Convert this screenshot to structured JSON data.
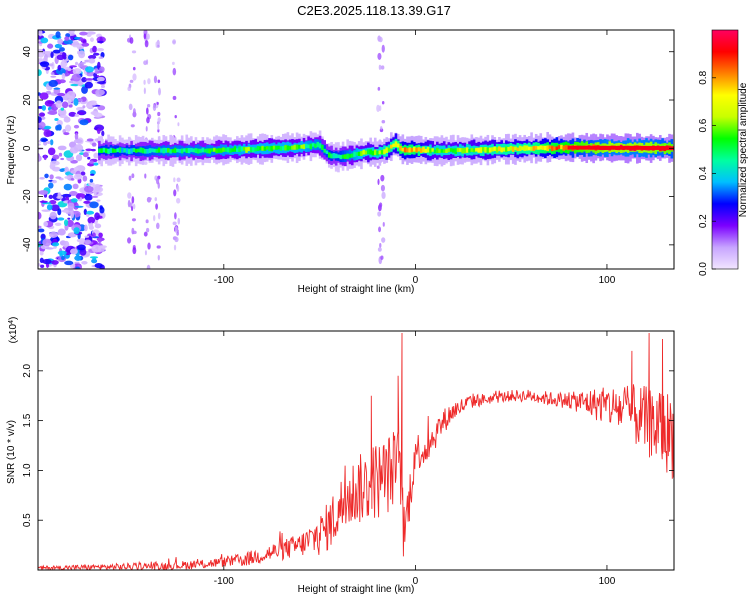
{
  "title": "C2E3.2025.118.13.39.G17",
  "chart_data": [
    {
      "type": "heatmap",
      "xlabel": "Height of straight line (km)",
      "ylabel": "Frequency (Hz)",
      "xlim": [
        -197,
        135
      ],
      "ylim": [
        -50,
        49
      ],
      "xticks": [
        -100,
        0,
        100
      ],
      "xtick_labels": [
        "-100",
        "0",
        "100"
      ],
      "yticks": [
        -40,
        -20,
        0,
        20,
        40
      ],
      "ytick_labels": [
        "-40",
        "-20",
        "0",
        "20",
        "40"
      ],
      "colorbar": {
        "label": "Normalized spectral amplitude",
        "range": [
          0,
          1
        ],
        "ticks": [
          0.0,
          0.2,
          0.4,
          0.6,
          0.8
        ],
        "tick_labels": [
          "0.0",
          "0.2",
          "0.4",
          "0.6",
          "0.8"
        ],
        "colors": [
          "#f2e6ff",
          "#c7a4ff",
          "#7b00ff",
          "#0000ff",
          "#00bfff",
          "#00ffa0",
          "#00ff00",
          "#c8ff00",
          "#ffff00",
          "#ff8000",
          "#ff0000",
          "#ff0060"
        ]
      },
      "ridge": {
        "x": [
          -165,
          -150,
          -130,
          -110,
          -90,
          -75,
          -60,
          -50,
          -45,
          -40,
          -35,
          -30,
          -25,
          -20,
          -15,
          -10,
          -8,
          -5,
          0,
          10,
          20,
          40,
          60,
          80,
          100,
          120,
          135
        ],
        "y": [
          -1,
          -1,
          -1,
          -1,
          -0.5,
          0,
          0.5,
          1.5,
          -3,
          -3.5,
          -3,
          -2.5,
          -1.5,
          -2,
          -1,
          2,
          0,
          -1,
          -0.5,
          -1,
          -1,
          -0.5,
          0,
          0.3,
          0.2,
          0.2,
          0
        ],
        "amplitude": [
          0.45,
          0.45,
          0.5,
          0.5,
          0.55,
          0.55,
          0.55,
          0.5,
          0.45,
          0.45,
          0.5,
          0.55,
          0.6,
          0.6,
          0.65,
          0.7,
          0.75,
          0.75,
          0.75,
          0.6,
          0.6,
          0.65,
          0.7,
          0.85,
          0.95,
          0.95,
          0.9
        ]
      },
      "noise_region": {
        "x": [
          -197,
          -163
        ],
        "y": [
          -50,
          49
        ]
      }
    },
    {
      "type": "line",
      "xlabel": "Height of straight line (km)",
      "ylabel": "SNR (10 * v/v)",
      "y_multiplier_label": "(x10",
      "y_multiplier_exp": "4",
      "xlim": [
        -197,
        135
      ],
      "ylim": [
        0,
        2.4
      ],
      "xticks": [
        -100,
        0,
        100
      ],
      "xtick_labels": [
        "-100",
        "0",
        "100"
      ],
      "yticks": [
        0.5,
        1.0,
        1.5,
        2.0
      ],
      "ytick_labels": [
        "0.5",
        "1.0",
        "1.5",
        "2.0"
      ],
      "line_color": "#ee2a2a",
      "envelope": {
        "x": [
          -197,
          -160,
          -130,
          -110,
          -90,
          -80,
          -70,
          -60,
          -50,
          -45,
          -40,
          -35,
          -30,
          -25,
          -20,
          -15,
          -10,
          -8,
          -6,
          -4,
          -2,
          0,
          5,
          10,
          15,
          20,
          25,
          30,
          40,
          50,
          60,
          70,
          80,
          90,
          100,
          110,
          120,
          130,
          135
        ],
        "y": [
          0.02,
          0.03,
          0.04,
          0.06,
          0.1,
          0.15,
          0.2,
          0.25,
          0.35,
          0.45,
          0.6,
          0.75,
          0.8,
          0.85,
          0.9,
          0.95,
          1.05,
          1.1,
          0.3,
          0.6,
          0.9,
          1.2,
          1.2,
          1.35,
          1.5,
          1.6,
          1.65,
          1.7,
          1.72,
          1.75,
          1.75,
          1.72,
          1.7,
          1.68,
          1.65,
          1.6,
          1.5,
          1.4,
          1.35
        ]
      },
      "noise_amplitude": {
        "x": [
          -197,
          -100,
          -60,
          -40,
          -20,
          -10,
          0,
          20,
          40,
          80,
          100,
          120,
          135
        ],
        "y": [
          0.02,
          0.05,
          0.12,
          0.3,
          0.4,
          0.4,
          0.2,
          0.1,
          0.05,
          0.08,
          0.2,
          0.35,
          0.45
        ]
      },
      "spikes": [
        {
          "x": -7,
          "y": 2.38
        },
        {
          "x": -9,
          "y": 1.95
        },
        {
          "x": -23,
          "y": 1.75
        },
        {
          "x": 122,
          "y": 2.38
        },
        {
          "x": 129,
          "y": 2.32
        },
        {
          "x": 113,
          "y": 2.2
        }
      ]
    }
  ]
}
